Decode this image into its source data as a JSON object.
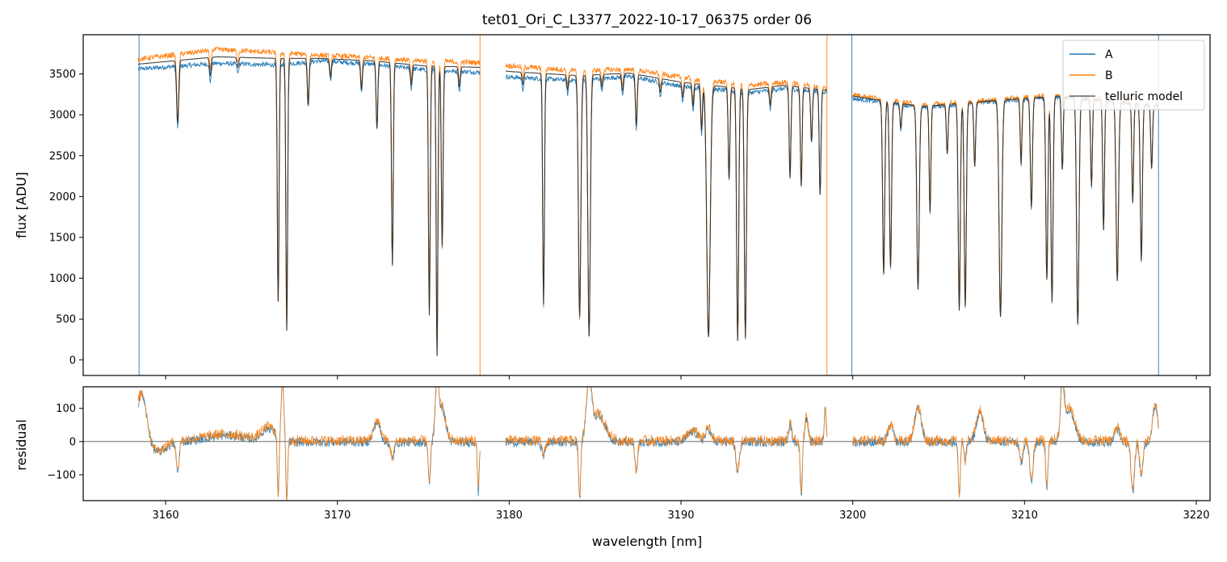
{
  "chart_data": [
    {
      "type": "line",
      "title": "tet01_Ori_C_L3377_2022-10-17_06375  order 06",
      "xlabel": "",
      "ylabel": "flux [ADU]",
      "xlim": [
        3155.2,
        3220.8
      ],
      "ylim": [
        -190,
        3980
      ],
      "xticks": [
        3160,
        3170,
        3180,
        3190,
        3200,
        3210,
        3220
      ],
      "yticks": [
        0,
        500,
        1000,
        1500,
        2000,
        2500,
        3000,
        3500
      ],
      "ytick_labels": [
        "0",
        "500",
        "1000",
        "1500",
        "2000",
        "2500",
        "3000",
        "3500"
      ],
      "legend": "top-right",
      "segments": [
        [
          3158.4,
          3178.3
        ],
        [
          3179.8,
          3198.5
        ],
        [
          3200.0,
          3217.8
        ]
      ],
      "telluric_lines": [
        [
          3160.7,
          750,
          0.06
        ],
        [
          3162.6,
          220,
          0.05
        ],
        [
          3164.2,
          120,
          0.05
        ],
        [
          3166.55,
          2900,
          0.05
        ],
        [
          3167.05,
          3250,
          0.05
        ],
        [
          3168.3,
          550,
          0.05
        ],
        [
          3169.6,
          220,
          0.05
        ],
        [
          3171.4,
          350,
          0.05
        ],
        [
          3172.3,
          800,
          0.05
        ],
        [
          3173.2,
          2450,
          0.05
        ],
        [
          3174.3,
          250,
          0.05
        ],
        [
          3175.35,
          3050,
          0.05
        ],
        [
          3175.8,
          3550,
          0.05
        ],
        [
          3176.1,
          2200,
          0.05
        ],
        [
          3177.1,
          250,
          0.05
        ],
        [
          3180.8,
          150,
          0.05
        ],
        [
          3182.0,
          2900,
          0.05
        ],
        [
          3183.4,
          180,
          0.05
        ],
        [
          3184.1,
          3050,
          0.07
        ],
        [
          3184.65,
          3300,
          0.07
        ],
        [
          3185.4,
          150,
          0.05
        ],
        [
          3186.6,
          220,
          0.05
        ],
        [
          3187.4,
          650,
          0.05
        ],
        [
          3188.8,
          180,
          0.05
        ],
        [
          3190.1,
          200,
          0.05
        ],
        [
          3190.7,
          300,
          0.05
        ],
        [
          3191.2,
          600,
          0.05
        ],
        [
          3191.6,
          3300,
          0.1
        ],
        [
          3192.8,
          1200,
          0.05
        ],
        [
          3193.3,
          3350,
          0.06
        ],
        [
          3193.75,
          3300,
          0.06
        ],
        [
          3195.2,
          250,
          0.05
        ],
        [
          3196.35,
          1200,
          0.05
        ],
        [
          3197.0,
          1300,
          0.05
        ],
        [
          3197.6,
          700,
          0.05
        ],
        [
          3198.1,
          1400,
          0.05
        ],
        [
          3201.8,
          2400,
          0.06
        ],
        [
          3202.2,
          2300,
          0.06
        ],
        [
          3202.8,
          350,
          0.05
        ],
        [
          3203.8,
          2600,
          0.07
        ],
        [
          3204.5,
          1500,
          0.05
        ],
        [
          3205.5,
          700,
          0.05
        ],
        [
          3206.2,
          2900,
          0.06
        ],
        [
          3206.55,
          2850,
          0.06
        ],
        [
          3207.1,
          900,
          0.05
        ],
        [
          3208.6,
          3000,
          0.08
        ],
        [
          3209.8,
          900,
          0.05
        ],
        [
          3210.4,
          1500,
          0.06
        ],
        [
          3211.3,
          2500,
          0.06
        ],
        [
          3211.6,
          2800,
          0.06
        ],
        [
          3212.2,
          1000,
          0.05
        ],
        [
          3213.1,
          3100,
          0.07
        ],
        [
          3213.9,
          1200,
          0.05
        ],
        [
          3214.6,
          1800,
          0.05
        ],
        [
          3215.4,
          2500,
          0.07
        ],
        [
          3216.3,
          1400,
          0.05
        ],
        [
          3216.8,
          2200,
          0.06
        ],
        [
          3217.4,
          900,
          0.05
        ]
      ],
      "series": [
        {
          "name": "A",
          "color": "#1f77b4",
          "continuum": [
            [
              3158.4,
              3560
            ],
            [
              3163.0,
              3630
            ],
            [
              3166.5,
              3610
            ],
            [
              3169.0,
              3660
            ],
            [
              3172.0,
              3620
            ],
            [
              3175.0,
              3550
            ],
            [
              3178.3,
              3520
            ],
            [
              3180.0,
              3460
            ],
            [
              3184.0,
              3420
            ],
            [
              3187.0,
              3470
            ],
            [
              3190.0,
              3350
            ],
            [
              3194.0,
              3270
            ],
            [
              3196.0,
              3320
            ],
            [
              3198.5,
              3280
            ],
            [
              3200.0,
              3200
            ],
            [
              3204.0,
              3090
            ],
            [
              3208.0,
              3160
            ],
            [
              3212.0,
              3220
            ],
            [
              3217.8,
              3100
            ]
          ],
          "noise": 28
        },
        {
          "name": "B",
          "color": "#ff7f0e",
          "continuum": [
            [
              3158.4,
              3680
            ],
            [
              3163.0,
              3800
            ],
            [
              3166.5,
              3760
            ],
            [
              3169.0,
              3730
            ],
            [
              3172.0,
              3700
            ],
            [
              3175.0,
              3660
            ],
            [
              3178.3,
              3640
            ],
            [
              3180.0,
              3600
            ],
            [
              3184.0,
              3540
            ],
            [
              3187.0,
              3560
            ],
            [
              3190.0,
              3460
            ],
            [
              3194.0,
              3360
            ],
            [
              3196.0,
              3400
            ],
            [
              3198.5,
              3330
            ],
            [
              3200.0,
              3250
            ],
            [
              3204.0,
              3120
            ],
            [
              3208.0,
              3180
            ],
            [
              3212.0,
              3250
            ],
            [
              3217.8,
              3120
            ]
          ],
          "noise": 32
        },
        {
          "name": "telluric model",
          "color": "#222222",
          "continuum": [
            [
              3158.4,
              3620
            ],
            [
              3163.0,
              3710
            ],
            [
              3166.5,
              3690
            ],
            [
              3169.0,
              3690
            ],
            [
              3172.0,
              3660
            ],
            [
              3175.0,
              3600
            ],
            [
              3178.3,
              3580
            ],
            [
              3180.0,
              3530
            ],
            [
              3184.0,
              3480
            ],
            [
              3187.0,
              3510
            ],
            [
              3190.0,
              3400
            ],
            [
              3194.0,
              3310
            ],
            [
              3196.0,
              3360
            ],
            [
              3198.5,
              3300
            ],
            [
              3200.0,
              3230
            ],
            [
              3204.0,
              3100
            ],
            [
              3208.0,
              3170
            ],
            [
              3212.0,
              3230
            ],
            [
              3217.8,
              3110
            ]
          ],
          "noise": 0
        }
      ],
      "vertical_spikes": [
        {
          "x": 3158.45,
          "color": "#1f77b4"
        },
        {
          "x": 3178.3,
          "color": "#ff7f0e"
        },
        {
          "x": 3198.5,
          "color": "#ff7f0e"
        },
        {
          "x": 3199.95,
          "color": "#1f77b4"
        },
        {
          "x": 3217.8,
          "color": "#1f77b4"
        }
      ]
    },
    {
      "type": "line",
      "title": "",
      "xlabel": "wavelength [nm]",
      "ylabel": "residual",
      "xlim": [
        3155.2,
        3220.8
      ],
      "ylim": [
        -178,
        165
      ],
      "xticks": [
        3160,
        3170,
        3180,
        3190,
        3200,
        3210,
        3220
      ],
      "xtick_labels": [
        "3160",
        "3170",
        "3180",
        "3190",
        "3200",
        "3210",
        "3220"
      ],
      "yticks": [
        -100,
        0,
        100
      ],
      "ytick_labels": [
        "−100",
        "0",
        "100"
      ],
      "zero_line": true,
      "series": [
        {
          "name": "A",
          "color": "#1f77b4",
          "noise": 14
        },
        {
          "name": "B",
          "color": "#ff7f0e",
          "noise": 16
        }
      ],
      "features": [
        [
          3158.6,
          150,
          0.3
        ],
        [
          3159.5,
          -30,
          0.5
        ],
        [
          3160.7,
          -90,
          0.08
        ],
        [
          3163.5,
          20,
          1.2
        ],
        [
          3166.0,
          40,
          0.4
        ],
        [
          3166.55,
          -180,
          0.05
        ],
        [
          3166.8,
          170,
          0.08
        ],
        [
          3167.05,
          -180,
          0.05
        ],
        [
          3172.3,
          60,
          0.2
        ],
        [
          3173.2,
          -50,
          0.1
        ],
        [
          3175.35,
          -130,
          0.06
        ],
        [
          3175.8,
          170,
          0.1
        ],
        [
          3176.1,
          100,
          0.2
        ],
        [
          3178.2,
          -150,
          0.05
        ],
        [
          3182.0,
          -40,
          0.1
        ],
        [
          3184.1,
          -170,
          0.06
        ],
        [
          3184.65,
          170,
          0.15
        ],
        [
          3185.2,
          80,
          0.4
        ],
        [
          3187.4,
          -90,
          0.08
        ],
        [
          3190.7,
          30,
          0.3
        ],
        [
          3191.6,
          40,
          0.15
        ],
        [
          3193.3,
          -90,
          0.1
        ],
        [
          3196.35,
          50,
          0.1
        ],
        [
          3197.0,
          -160,
          0.06
        ],
        [
          3197.3,
          70,
          0.1
        ],
        [
          3198.4,
          100,
          0.06
        ],
        [
          3202.2,
          50,
          0.15
        ],
        [
          3203.8,
          100,
          0.2
        ],
        [
          3206.2,
          -160,
          0.06
        ],
        [
          3206.55,
          -60,
          0.06
        ],
        [
          3207.4,
          90,
          0.2
        ],
        [
          3209.8,
          -60,
          0.1
        ],
        [
          3210.4,
          -120,
          0.1
        ],
        [
          3211.3,
          -140,
          0.06
        ],
        [
          3212.2,
          160,
          0.1
        ],
        [
          3212.6,
          100,
          0.3
        ],
        [
          3215.4,
          40,
          0.15
        ],
        [
          3216.3,
          -150,
          0.1
        ],
        [
          3216.8,
          -100,
          0.1
        ],
        [
          3217.6,
          110,
          0.15
        ]
      ]
    }
  ]
}
